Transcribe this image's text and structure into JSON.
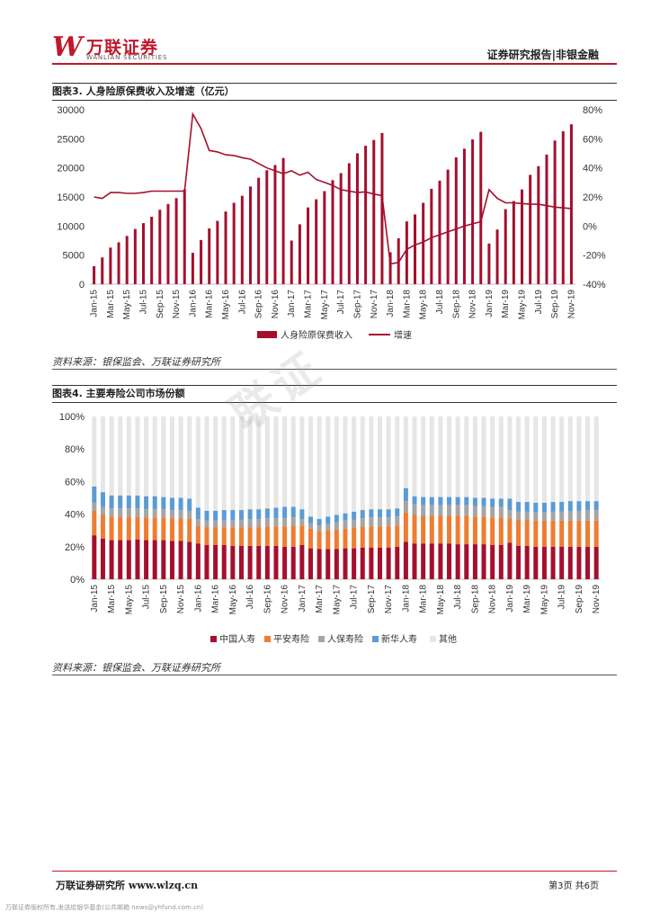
{
  "header": {
    "logo_mark": "W",
    "logo_cn": "万联证券",
    "logo_en": "WANLIAN SECURITIES",
    "right_text": "证券研究报告|非银金融"
  },
  "watermark": "联证",
  "source1": "资料来源：银保监会、万联证券研究所",
  "source2": "资料来源：银保监会、万联证券研究所",
  "footer": {
    "left": "万联证券研究所 www.wlzq.cn",
    "right": "第3页 共6页",
    "disclaimer": "万联证券版权所有,发送给银华基金(公共邮箱 news@yhfund.com.cn)"
  },
  "colors": {
    "bar": "#A50F2D",
    "line": "#A50F2D",
    "china_life": "#A50F2D",
    "ping_an": "#ED7D31",
    "picc": "#A5A5A5",
    "new_china": "#5B9BD5",
    "other": "#E7E6E6"
  },
  "chart_data": [
    {
      "type": "bar+line",
      "title": "图表3. 人身险原保费收入及增速（亿元）",
      "categories": [
        "Jan-15",
        "Feb-15",
        "Mar-15",
        "Apr-15",
        "May-15",
        "Jun-15",
        "Jul-15",
        "Aug-15",
        "Sep-15",
        "Oct-15",
        "Nov-15",
        "Dec-15",
        "Jan-16",
        "Feb-16",
        "Mar-16",
        "Apr-16",
        "May-16",
        "Jun-16",
        "Jul-16",
        "Aug-16",
        "Sep-16",
        "Oct-16",
        "Nov-16",
        "Dec-16",
        "Jan-17",
        "Feb-17",
        "Mar-17",
        "Apr-17",
        "May-17",
        "Jun-17",
        "Jul-17",
        "Aug-17",
        "Sep-17",
        "Oct-17",
        "Nov-17",
        "Dec-17",
        "Jan-18",
        "Feb-18",
        "Mar-18",
        "Apr-18",
        "May-18",
        "Jun-18",
        "Jul-18",
        "Aug-18",
        "Sep-18",
        "Oct-18",
        "Nov-18",
        "Dec-18",
        "Jan-19",
        "Feb-19",
        "Mar-19",
        "Apr-19",
        "May-19",
        "Jun-19",
        "Jul-19",
        "Aug-19",
        "Sep-19",
        "Oct-19",
        "Nov-19"
      ],
      "tick_labels": [
        "Jan-15",
        "Mar-15",
        "May-15",
        "Jul-15",
        "Sep-15",
        "Nov-15",
        "Jan-16",
        "Mar-16",
        "May-16",
        "Jul-16",
        "Sep-16",
        "Nov-16",
        "Jan-17",
        "Mar-17",
        "May-17",
        "Jul-17",
        "Sep-17",
        "Nov-17",
        "Jan-18",
        "Mar-18",
        "May-18",
        "Jul-18",
        "Sep-18",
        "Nov-18",
        "Jan-19",
        "Mar-19",
        "May-19",
        "Jul-19",
        "Sep-19",
        "Nov-19"
      ],
      "series": [
        {
          "name": "人身险原保费收入",
          "kind": "bar",
          "axis": "left",
          "values": [
            3100,
            4600,
            6300,
            7200,
            8300,
            9500,
            10500,
            11600,
            12800,
            13800,
            14800,
            16300,
            5400,
            7600,
            9600,
            10900,
            12500,
            14000,
            15200,
            16800,
            18300,
            19600,
            20500,
            21700,
            7500,
            10300,
            13200,
            14600,
            16000,
            17900,
            19100,
            20800,
            22500,
            23800,
            24800,
            26000,
            5500,
            7900,
            10800,
            12000,
            14000,
            16400,
            17800,
            19700,
            21800,
            23300,
            24900,
            26200,
            7000,
            9400,
            12900,
            14300,
            16300,
            18800,
            20300,
            22300,
            24700,
            26300,
            27500
          ]
        },
        {
          "name": "增速",
          "kind": "line",
          "axis": "right",
          "values": [
            20,
            19,
            23,
            23,
            22.5,
            22.5,
            23,
            24,
            24,
            24,
            24,
            24,
            77,
            67,
            52,
            51,
            49,
            48.5,
            47,
            46,
            43,
            40,
            38,
            36,
            38,
            35,
            37,
            32,
            30,
            28,
            25,
            24,
            23,
            23.5,
            22,
            21,
            -26,
            -25,
            -16,
            -13,
            -11,
            -8,
            -6,
            -4,
            -2,
            0,
            1.5,
            3,
            25,
            19,
            16,
            16,
            15.5,
            15,
            15,
            14,
            13,
            12.5,
            12
          ]
        }
      ],
      "y_left": {
        "ticks": [
          0,
          5000,
          10000,
          15000,
          20000,
          25000,
          30000
        ],
        "range": [
          0,
          30000
        ]
      },
      "y_right": {
        "ticks": [
          "-40%",
          "-20%",
          "0%",
          "20%",
          "40%",
          "60%",
          "80%"
        ],
        "range": [
          -40,
          80
        ]
      },
      "legend": [
        "人身险原保费收入",
        "增速"
      ]
    },
    {
      "type": "stacked_bar",
      "title": "图表4. 主要寿险公司市场份额",
      "categories": [
        "Jan-15",
        "Feb-15",
        "Mar-15",
        "Apr-15",
        "May-15",
        "Jun-15",
        "Jul-15",
        "Aug-15",
        "Sep-15",
        "Oct-15",
        "Nov-15",
        "Dec-15",
        "Jan-16",
        "Feb-16",
        "Mar-16",
        "Apr-16",
        "May-16",
        "Jun-16",
        "Jul-16",
        "Aug-16",
        "Sep-16",
        "Oct-16",
        "Nov-16",
        "Dec-16",
        "Jan-17",
        "Feb-17",
        "Mar-17",
        "Apr-17",
        "May-17",
        "Jun-17",
        "Jul-17",
        "Aug-17",
        "Sep-17",
        "Oct-17",
        "Nov-17",
        "Dec-17",
        "Jan-18",
        "Feb-18",
        "Mar-18",
        "Apr-18",
        "May-18",
        "Jun-18",
        "Jul-18",
        "Aug-18",
        "Sep-18",
        "Oct-18",
        "Nov-18",
        "Dec-18",
        "Jan-19",
        "Feb-19",
        "Mar-19",
        "Apr-19",
        "May-19",
        "Jun-19",
        "Jul-19",
        "Aug-19",
        "Sep-19",
        "Oct-19",
        "Nov-19"
      ],
      "tick_labels": [
        "Jan-15",
        "Mar-15",
        "May-15",
        "Jul-15",
        "Sep-15",
        "Nov-15",
        "Jan-16",
        "Mar-16",
        "May-16",
        "Jul-16",
        "Sep-16",
        "Nov-16",
        "Jan-17",
        "Mar-17",
        "May-17",
        "Jul-17",
        "Sep-17",
        "Nov-17",
        "Jan-18",
        "Mar-18",
        "May-18",
        "Jul-18",
        "Sep-18",
        "Nov-18",
        "Jan-19",
        "Mar-19",
        "May-19",
        "Jul-19",
        "Sep-19",
        "Nov-19"
      ],
      "series": [
        {
          "name": "中国人寿",
          "values": [
            27,
            25,
            24,
            24,
            24,
            24.5,
            24,
            24,
            24,
            23.5,
            23.5,
            23,
            22,
            21,
            21,
            21,
            20.5,
            20.5,
            20.5,
            20.5,
            20.5,
            20.5,
            20,
            20,
            21,
            19,
            18.5,
            18.5,
            18.5,
            19,
            19,
            19.5,
            19.5,
            19.5,
            19.5,
            20,
            23,
            22,
            22,
            22,
            22,
            22,
            21.5,
            21.5,
            21.5,
            21.5,
            21,
            21,
            22.5,
            20.5,
            20.5,
            20,
            20,
            20,
            20,
            20,
            20,
            20,
            20
          ]
        },
        {
          "name": "平安寿险",
          "values": [
            15,
            14.5,
            14.5,
            14.5,
            14.5,
            14,
            14,
            14,
            14,
            14,
            14,
            14,
            11,
            11,
            11,
            11,
            11.5,
            11.5,
            11.5,
            11.5,
            12,
            12,
            12.5,
            13,
            12,
            12,
            11,
            11.5,
            12,
            12,
            12.5,
            13,
            13,
            13,
            13,
            13,
            18,
            17.5,
            17,
            17,
            17,
            17,
            17.5,
            17.5,
            17,
            17,
            17,
            17,
            15,
            16,
            16,
            16,
            16,
            16,
            16,
            16,
            16,
            16,
            16
          ]
        },
        {
          "name": "人保寿险",
          "values": [
            5,
            5,
            5,
            5,
            5,
            5,
            5,
            5,
            5,
            5,
            5,
            5,
            4,
            4,
            4,
            4.5,
            4.5,
            4.5,
            5,
            5,
            5,
            5,
            5,
            5,
            4,
            3.5,
            3.5,
            4,
            4.5,
            5,
            5,
            5,
            5.5,
            5.5,
            5.5,
            5.5,
            7,
            6.5,
            6.5,
            6.5,
            6.5,
            6.5,
            6.5,
            6.5,
            6.5,
            6.5,
            6.5,
            6.5,
            5,
            5,
            5,
            5,
            5,
            5.5,
            5.5,
            6,
            6,
            6.5,
            6.5
          ]
        },
        {
          "name": "新华人寿",
          "values": [
            10,
            9,
            8,
            8,
            8,
            8,
            8,
            8,
            7.5,
            7.5,
            7.5,
            7.5,
            7,
            6,
            6,
            6,
            6,
            6,
            6,
            6,
            6,
            6.5,
            7,
            6.5,
            6,
            4,
            4,
            4.5,
            4.5,
            4.5,
            5,
            5,
            5,
            5,
            5,
            5,
            8,
            5,
            5,
            5,
            5,
            5,
            5,
            5,
            5,
            5,
            5,
            5,
            7,
            6,
            6,
            6,
            6,
            6,
            6,
            6,
            6,
            5.5,
            5.5
          ]
        },
        {
          "name": "其他",
          "values": [
            43,
            46.5,
            48.5,
            48.5,
            48.5,
            48.5,
            49,
            49,
            49.5,
            50,
            50,
            50.5,
            56,
            58,
            58,
            57.5,
            57.5,
            57.5,
            57,
            57,
            56.5,
            56,
            55.5,
            55.5,
            57,
            61.5,
            63,
            61.5,
            60.5,
            59.5,
            58.5,
            57.5,
            57,
            57,
            57,
            56.5,
            44,
            49,
            49.5,
            49.5,
            49.5,
            49.5,
            49.5,
            49.5,
            50,
            50,
            50.5,
            50.5,
            50.5,
            52.5,
            52.5,
            53,
            53,
            52.5,
            52.5,
            52,
            52,
            52,
            52
          ]
        }
      ],
      "y_axis": {
        "ticks": [
          "0%",
          "20%",
          "40%",
          "60%",
          "80%",
          "100%"
        ],
        "range": [
          0,
          100
        ]
      },
      "legend": [
        "中国人寿",
        "平安寿险",
        "人保寿险",
        "新华人寿",
        "其他"
      ]
    }
  ]
}
